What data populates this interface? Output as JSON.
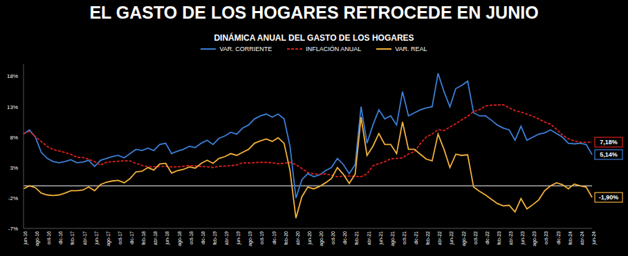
{
  "chart_data": {
    "type": "line",
    "title": "EL GASTO DE LOS HOGARES RETROCEDE EN JUNIO",
    "subtitle": "DINÁMICA ANUAL DEL GASTO DE LOS HOGARES",
    "categories": [
      "jun-16",
      null,
      "ago-16",
      null,
      "oct-16",
      null,
      "dic-16",
      null,
      "feb-17",
      null,
      "abr-17",
      null,
      "jun-17",
      null,
      "ago-17",
      null,
      "oct-17",
      null,
      "dic-17",
      null,
      "feb-18",
      null,
      "abr-18",
      null,
      "jun-18",
      null,
      "ago-18",
      null,
      "oct-18",
      null,
      "dic-18",
      null,
      "feb-19",
      null,
      "abr-19",
      null,
      "jun-19",
      null,
      "ago-19",
      null,
      "oct-19",
      null,
      "dic-19",
      null,
      "feb-20",
      null,
      "abr-20",
      null,
      "jun-20",
      null,
      "ago-20",
      null,
      "oct-20",
      null,
      "dic-20",
      null,
      "feb-21",
      null,
      "abr-21",
      null,
      "jun-21",
      null,
      "ago-21",
      null,
      "oct-21",
      null,
      "dic-21",
      null,
      "feb-22",
      null,
      "abr-22",
      null,
      "jun-22",
      null,
      "ago-22",
      null,
      "oct-22",
      null,
      "dic-22",
      null,
      "feb-23",
      null,
      "abr-23",
      null,
      "jun-23",
      null,
      "ago-23",
      null,
      "oct-23",
      null,
      "dic-23",
      null,
      "feb-24",
      null,
      "abr-24",
      null,
      "jun-24"
    ],
    "series": [
      {
        "name": "VAR. CORRIENTE",
        "color": "#3b7fd6",
        "line_style": "solid",
        "end_label": "5,14%",
        "values": [
          8.5,
          9.2,
          8.0,
          5.5,
          4.5,
          4.0,
          3.8,
          4.0,
          4.3,
          3.8,
          3.9,
          4.2,
          3.2,
          4.2,
          4.5,
          4.8,
          5.0,
          4.6,
          5.3,
          6.0,
          5.8,
          6.2,
          5.8,
          6.8,
          7.0,
          5.3,
          5.7,
          6.0,
          6.5,
          6.3,
          7.0,
          7.5,
          6.8,
          7.8,
          8.2,
          8.8,
          8.5,
          9.5,
          10.0,
          11.0,
          11.5,
          11.8,
          11.3,
          11.8,
          11.0,
          6.5,
          -2.0,
          1.0,
          2.0,
          1.5,
          1.8,
          2.5,
          3.0,
          4.5,
          3.5,
          2.0,
          3.5,
          13.0,
          7.0,
          10.0,
          12.5,
          11.0,
          11.5,
          10.0,
          15.5,
          11.5,
          12.0,
          12.5,
          12.8,
          13.0,
          18.5,
          15.5,
          13.0,
          16.0,
          16.5,
          17.2,
          12.0,
          11.5,
          11.5,
          10.8,
          10.0,
          9.5,
          9.2,
          7.5,
          9.8,
          7.5,
          8.0,
          8.5,
          8.7,
          9.2,
          8.6,
          8.0,
          7.0,
          6.9,
          7.0,
          6.8,
          5.14
        ]
      },
      {
        "name": "INFLACIÓN ANUAL",
        "color": "#e0201c",
        "line_style": "dashed",
        "end_label": "7,18%",
        "values": [
          8.6,
          8.97,
          8.1,
          7.27,
          6.48,
          5.96,
          5.75,
          5.47,
          5.18,
          4.69,
          4.66,
          4.37,
          3.99,
          3.4,
          3.87,
          3.97,
          4.05,
          4.12,
          4.09,
          3.68,
          3.37,
          3.14,
          3.13,
          3.16,
          3.2,
          3.12,
          3.1,
          3.23,
          3.33,
          3.27,
          3.18,
          3.15,
          3.01,
          3.21,
          3.25,
          3.31,
          3.43,
          3.79,
          3.75,
          3.82,
          3.86,
          3.84,
          3.8,
          3.62,
          3.72,
          3.86,
          3.51,
          2.85,
          2.19,
          1.97,
          1.88,
          1.97,
          1.75,
          1.49,
          1.61,
          1.6,
          1.56,
          1.51,
          1.95,
          3.3,
          3.63,
          3.97,
          4.44,
          4.51,
          4.58,
          5.26,
          5.62,
          6.94,
          8.01,
          8.53,
          9.23,
          9.07,
          9.67,
          10.21,
          10.84,
          11.44,
          12.22,
          12.53,
          13.12,
          13.25,
          13.28,
          13.34,
          12.82,
          12.36,
          12.13,
          11.78,
          11.43,
          10.99,
          10.48,
          10.15,
          9.28,
          8.35,
          7.74,
          7.36,
          7.16,
          7.16,
          7.18
        ]
      },
      {
        "name": "VAR. REAL",
        "color": "#f4b13c",
        "line_style": "solid",
        "end_label": "-1,90%",
        "values": [
          -0.5,
          0.0,
          -0.3,
          -1.2,
          -1.5,
          -1.6,
          -1.5,
          -1.2,
          -0.8,
          -0.8,
          -0.7,
          -0.2,
          -0.8,
          0.2,
          0.6,
          0.8,
          0.9,
          0.5,
          1.2,
          2.3,
          2.4,
          3.0,
          2.6,
          3.6,
          3.7,
          2.1,
          2.5,
          2.7,
          3.1,
          2.9,
          3.7,
          4.2,
          3.7,
          4.5,
          4.8,
          5.3,
          5.0,
          5.5,
          6.0,
          7.0,
          7.4,
          7.7,
          7.3,
          7.9,
          7.0,
          2.5,
          -5.3,
          -1.8,
          -0.2,
          -0.5,
          -0.1,
          0.5,
          1.2,
          3.0,
          1.9,
          0.4,
          1.9,
          11.3,
          5.0,
          6.5,
          8.6,
          6.8,
          6.8,
          5.3,
          10.5,
          6.0,
          6.0,
          5.2,
          4.4,
          4.1,
          8.5,
          6.0,
          3.0,
          5.2,
          5.0,
          5.1,
          -0.2,
          -0.9,
          -1.5,
          -2.2,
          -2.9,
          -3.3,
          -3.2,
          -4.3,
          -2.1,
          -3.8,
          -3.1,
          -2.3,
          -0.8,
          0.0,
          0.5,
          0.2,
          -0.5,
          0.3,
          0.0,
          -0.2,
          -1.9
        ]
      }
    ],
    "ylim": [
      -7,
      20
    ],
    "yticks": [
      {
        "value": -7,
        "label": "-7%"
      },
      {
        "value": -2,
        "label": "-2%"
      },
      {
        "value": 3,
        "label": "3%"
      },
      {
        "value": 8,
        "label": "8%"
      },
      {
        "value": 13,
        "label": "13%"
      },
      {
        "value": 18,
        "label": "18%"
      }
    ],
    "zero_line": 0,
    "grid": false
  }
}
